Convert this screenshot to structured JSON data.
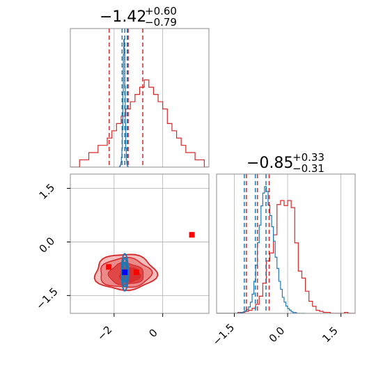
{
  "chart_data": {
    "type": "corner",
    "parameters": [
      {
        "title_main": "−1.42",
        "title_plus": "+0.60",
        "title_minus": "−0.79",
        "range": [
          -3.8,
          1.9
        ],
        "ticks": [
          -2,
          0
        ],
        "tick_labels": [
          "−2",
          "0"
        ]
      },
      {
        "title_main": "−0.85",
        "title_plus": "+0.33",
        "title_minus": "−0.31",
        "range": [
          -2.0,
          1.9
        ],
        "ticks": [
          -1.5,
          0.0,
          1.5
        ],
        "tick_labels": [
          "−1.5",
          "0.0",
          "1.5"
        ]
      }
    ],
    "series": [
      {
        "color": "#d62728",
        "quantiles_p1": [
          -2.2,
          -1.42,
          -0.82
        ],
        "quantiles_p2": [
          -1.16,
          -0.85,
          -0.52
        ],
        "hist_p1": {
          "edges_start": -3.8,
          "bin_width": 0.19,
          "counts": [
            0,
            0,
            1,
            1,
            2,
            2,
            3,
            3,
            4,
            5,
            6,
            7,
            8,
            9,
            10,
            11,
            12,
            11,
            10,
            9,
            8,
            6,
            5,
            4,
            3,
            2,
            2,
            1,
            1,
            0,
            0,
            0,
            0,
            0,
            0,
            0,
            0,
            0,
            0,
            0
          ]
        },
        "hist_p2": {
          "edges_start": -2.0,
          "bin_width": 0.1,
          "counts": [
            0,
            0,
            0,
            0,
            0,
            0,
            1,
            1,
            2,
            3,
            5,
            9,
            17,
            30,
            52,
            60,
            78,
            108,
            112,
            107,
            112,
            105,
            70,
            42,
            35,
            22,
            12,
            7,
            3,
            2,
            1,
            1,
            0,
            0,
            0,
            0,
            1,
            0,
            0,
            0
          ]
        },
        "markers": [
          {
            "x": 1.2,
            "y": 0.2
          },
          {
            "x": -2.22,
            "y": -0.7
          },
          {
            "x": -1.08,
            "y": -0.85
          }
        ]
      },
      {
        "color": "#1f77b4",
        "quantiles_p1": [
          -1.67,
          -1.56,
          -1.46
        ],
        "quantiles_p2": [
          -1.16,
          -0.85,
          -0.55
        ],
        "hist_p1": {
          "edges_start": -3.8,
          "bin_width": 0.02,
          "counts_start_index": 100,
          "counts": [
            0,
            1,
            2,
            4,
            8,
            16,
            30,
            60,
            120,
            180,
            205,
            190,
            130,
            70,
            30,
            12,
            5,
            2,
            1,
            0
          ]
        },
        "hist_p2": {
          "edges_start": -2.0,
          "bin_width": 0.05,
          "counts": [
            0,
            0,
            0,
            0,
            0,
            0,
            0,
            0,
            0,
            0,
            0,
            0,
            0,
            1,
            1,
            2,
            3,
            5,
            8,
            14,
            24,
            40,
            60,
            88,
            110,
            134,
            150,
            158,
            152,
            135,
            122,
            108,
            90,
            70,
            56,
            40,
            30,
            20,
            14,
            9,
            6,
            4,
            2,
            1,
            1,
            0,
            0,
            0,
            0,
            0
          ]
        },
        "markers": [
          {
            "x": -1.56,
            "y": -0.85
          }
        ]
      }
    ],
    "grid": true
  }
}
